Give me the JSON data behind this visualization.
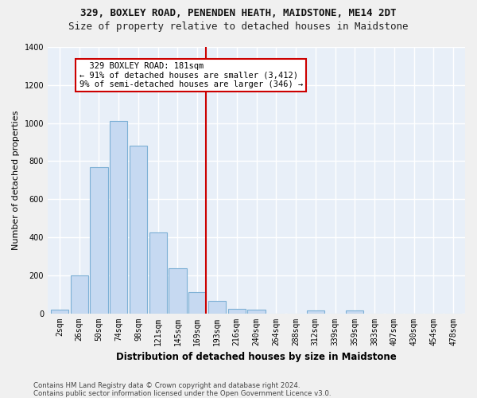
{
  "title1": "329, BOXLEY ROAD, PENENDEN HEATH, MAIDSTONE, ME14 2DT",
  "title2": "Size of property relative to detached houses in Maidstone",
  "xlabel": "Distribution of detached houses by size in Maidstone",
  "ylabel": "Number of detached properties",
  "footer1": "Contains HM Land Registry data © Crown copyright and database right 2024.",
  "footer2": "Contains public sector information licensed under the Open Government Licence v3.0.",
  "bar_labels": [
    "2sqm",
    "26sqm",
    "50sqm",
    "74sqm",
    "98sqm",
    "121sqm",
    "145sqm",
    "169sqm",
    "193sqm",
    "216sqm",
    "240sqm",
    "264sqm",
    "288sqm",
    "312sqm",
    "339sqm",
    "359sqm",
    "383sqm",
    "407sqm",
    "430sqm",
    "454sqm",
    "478sqm"
  ],
  "bar_values": [
    20,
    200,
    770,
    1010,
    880,
    425,
    235,
    110,
    65,
    25,
    20,
    0,
    0,
    15,
    0,
    15,
    0,
    0,
    0,
    0,
    0
  ],
  "bar_color": "#c6d9f1",
  "bar_edge_color": "#7db0d5",
  "vline_x": 7.42,
  "vline_color": "#cc0000",
  "annotation_text": "  329 BOXLEY ROAD: 181sqm  \n← 91% of detached houses are smaller (3,412)\n9% of semi-detached houses are larger (346) →",
  "annotation_box_color": "#cc0000",
  "ylim": [
    0,
    1400
  ],
  "yticks": [
    0,
    200,
    400,
    600,
    800,
    1000,
    1200,
    1400
  ],
  "bg_color": "#e8eff8",
  "grid_color": "#ffffff",
  "fig_bg": "#f0f0f0",
  "title1_fontsize": 9,
  "title2_fontsize": 9,
  "xlabel_fontsize": 8.5,
  "ylabel_fontsize": 8,
  "tick_fontsize": 7,
  "annotation_fontsize": 7.5
}
